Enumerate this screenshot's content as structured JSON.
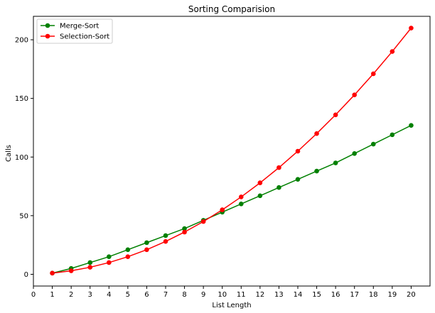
{
  "chart_data": {
    "type": "line",
    "title": "Sorting Comparision",
    "xlabel": "List Length",
    "ylabel": "Calls",
    "xlim": [
      0,
      21
    ],
    "ylim": [
      -10,
      220
    ],
    "xticks": [
      0,
      1,
      2,
      3,
      4,
      5,
      6,
      7,
      8,
      9,
      10,
      11,
      12,
      13,
      14,
      15,
      16,
      17,
      18,
      19,
      20
    ],
    "yticks": [
      0,
      50,
      100,
      150,
      200
    ],
    "grid": false,
    "legend_position": "upper-left",
    "x": [
      1,
      2,
      3,
      4,
      5,
      6,
      7,
      8,
      9,
      10,
      11,
      12,
      13,
      14,
      15,
      16,
      17,
      18,
      19,
      20
    ],
    "series": [
      {
        "name": "Merge-Sort",
        "color": "#008000",
        "marker": "circle",
        "values": [
          1,
          5,
          10,
          15,
          21,
          27,
          33,
          39,
          46,
          53,
          60,
          67,
          74,
          81,
          88,
          95,
          103,
          111,
          119,
          127
        ]
      },
      {
        "name": "Selection-Sort",
        "color": "#ff0000",
        "marker": "circle",
        "values": [
          1,
          3,
          6,
          10,
          15,
          21,
          28,
          36,
          45,
          55,
          66,
          78,
          91,
          105,
          120,
          136,
          153,
          171,
          190,
          210
        ]
      }
    ]
  }
}
